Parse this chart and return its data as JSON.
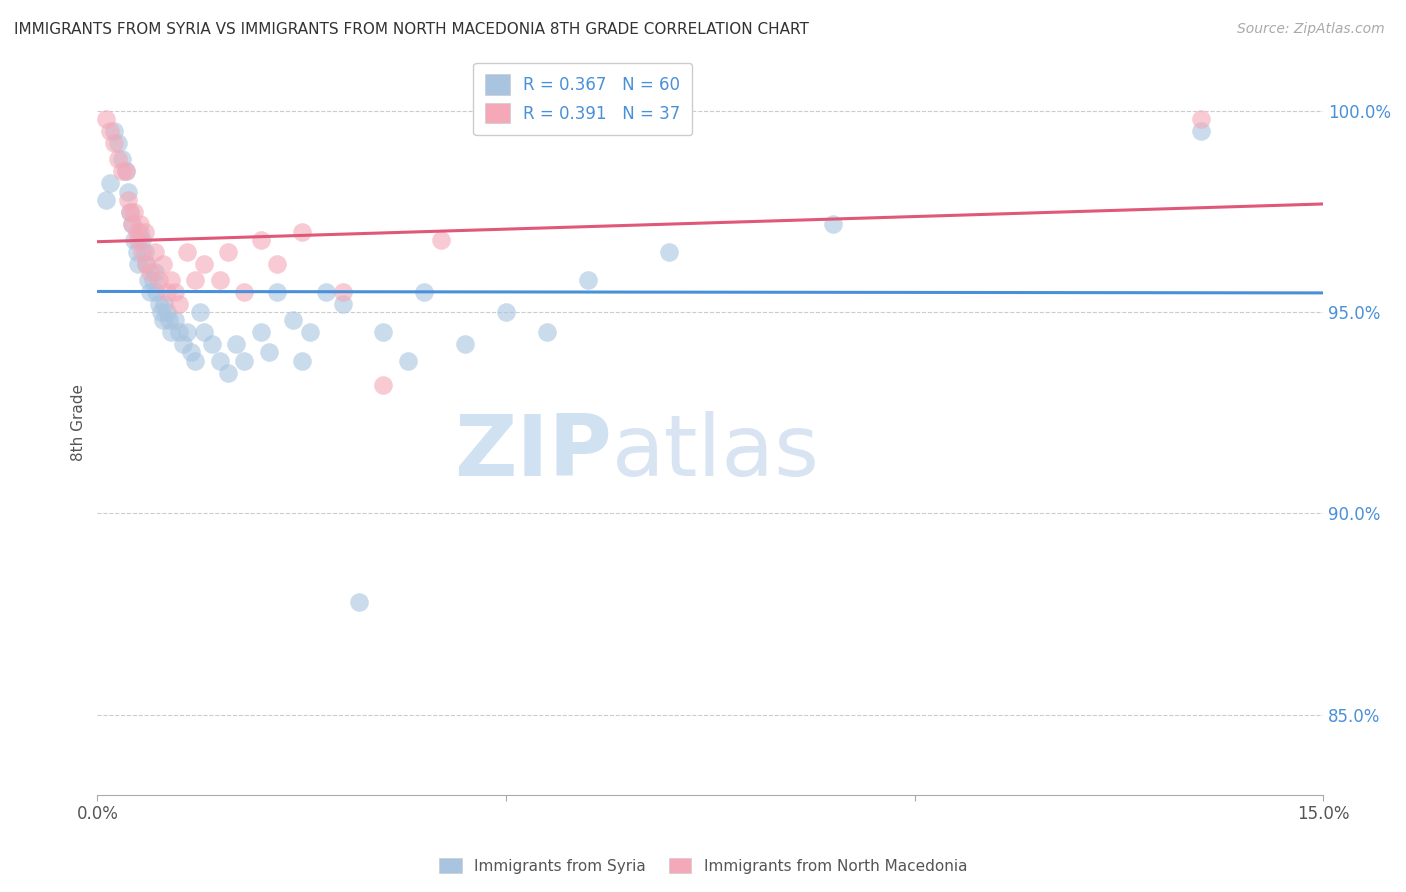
{
  "title": "IMMIGRANTS FROM SYRIA VS IMMIGRANTS FROM NORTH MACEDONIA 8TH GRADE CORRELATION CHART",
  "source": "Source: ZipAtlas.com",
  "xlabel_blue": "Immigrants from Syria",
  "xlabel_pink": "Immigrants from North Macedonia",
  "ylabel": "8th Grade",
  "xlim": [
    0.0,
    15.0
  ],
  "ylim": [
    83.0,
    101.5
  ],
  "yticks": [
    85.0,
    90.0,
    95.0,
    100.0
  ],
  "ytick_labels": [
    "85.0%",
    "90.0%",
    "95.0%",
    "100.0%"
  ],
  "xticks": [
    0.0,
    5.0,
    10.0,
    15.0
  ],
  "xtick_labels": [
    "0.0%",
    "",
    "",
    "15.0%"
  ],
  "blue_R": 0.367,
  "blue_N": 60,
  "pink_R": 0.391,
  "pink_N": 37,
  "blue_color": "#a8c4e0",
  "pink_color": "#f4a8b8",
  "blue_line_color": "#4a90d9",
  "pink_line_color": "#e05878",
  "blue_scatter": [
    [
      0.1,
      97.8
    ],
    [
      0.15,
      98.2
    ],
    [
      0.2,
      99.5
    ],
    [
      0.25,
      99.2
    ],
    [
      0.3,
      98.8
    ],
    [
      0.35,
      98.5
    ],
    [
      0.38,
      98.0
    ],
    [
      0.4,
      97.5
    ],
    [
      0.42,
      97.2
    ],
    [
      0.45,
      96.8
    ],
    [
      0.48,
      96.5
    ],
    [
      0.5,
      96.2
    ],
    [
      0.52,
      97.0
    ],
    [
      0.55,
      96.8
    ],
    [
      0.58,
      96.5
    ],
    [
      0.6,
      96.2
    ],
    [
      0.62,
      95.8
    ],
    [
      0.65,
      95.5
    ],
    [
      0.68,
      95.8
    ],
    [
      0.7,
      96.0
    ],
    [
      0.72,
      95.5
    ],
    [
      0.75,
      95.2
    ],
    [
      0.78,
      95.0
    ],
    [
      0.8,
      94.8
    ],
    [
      0.82,
      95.2
    ],
    [
      0.85,
      95.0
    ],
    [
      0.88,
      94.8
    ],
    [
      0.9,
      94.5
    ],
    [
      0.95,
      94.8
    ],
    [
      1.0,
      94.5
    ],
    [
      1.05,
      94.2
    ],
    [
      1.1,
      94.5
    ],
    [
      1.15,
      94.0
    ],
    [
      1.2,
      93.8
    ],
    [
      1.25,
      95.0
    ],
    [
      1.3,
      94.5
    ],
    [
      1.4,
      94.2
    ],
    [
      1.5,
      93.8
    ],
    [
      1.6,
      93.5
    ],
    [
      1.7,
      94.2
    ],
    [
      1.8,
      93.8
    ],
    [
      2.0,
      94.5
    ],
    [
      2.1,
      94.0
    ],
    [
      2.2,
      95.5
    ],
    [
      2.4,
      94.8
    ],
    [
      2.5,
      93.8
    ],
    [
      2.6,
      94.5
    ],
    [
      2.8,
      95.5
    ],
    [
      3.0,
      95.2
    ],
    [
      3.2,
      87.8
    ],
    [
      3.5,
      94.5
    ],
    [
      3.8,
      93.8
    ],
    [
      4.0,
      95.5
    ],
    [
      4.5,
      94.2
    ],
    [
      5.0,
      95.0
    ],
    [
      5.5,
      94.5
    ],
    [
      6.0,
      95.8
    ],
    [
      7.0,
      96.5
    ],
    [
      9.0,
      97.2
    ],
    [
      13.5,
      99.5
    ]
  ],
  "pink_scatter": [
    [
      0.1,
      99.8
    ],
    [
      0.15,
      99.5
    ],
    [
      0.2,
      99.2
    ],
    [
      0.25,
      98.8
    ],
    [
      0.3,
      98.5
    ],
    [
      0.35,
      98.5
    ],
    [
      0.38,
      97.8
    ],
    [
      0.4,
      97.5
    ],
    [
      0.42,
      97.2
    ],
    [
      0.45,
      97.5
    ],
    [
      0.48,
      97.0
    ],
    [
      0.5,
      96.8
    ],
    [
      0.52,
      97.2
    ],
    [
      0.55,
      96.5
    ],
    [
      0.58,
      97.0
    ],
    [
      0.6,
      96.2
    ],
    [
      0.65,
      96.0
    ],
    [
      0.7,
      96.5
    ],
    [
      0.75,
      95.8
    ],
    [
      0.8,
      96.2
    ],
    [
      0.85,
      95.5
    ],
    [
      0.9,
      95.8
    ],
    [
      0.95,
      95.5
    ],
    [
      1.0,
      95.2
    ],
    [
      1.1,
      96.5
    ],
    [
      1.2,
      95.8
    ],
    [
      1.3,
      96.2
    ],
    [
      1.5,
      95.8
    ],
    [
      1.6,
      96.5
    ],
    [
      1.8,
      95.5
    ],
    [
      2.0,
      96.8
    ],
    [
      2.2,
      96.2
    ],
    [
      2.5,
      97.0
    ],
    [
      3.0,
      95.5
    ],
    [
      3.5,
      93.2
    ],
    [
      4.2,
      96.8
    ],
    [
      13.5,
      99.8
    ]
  ],
  "watermark_zip": "ZIP",
  "watermark_atlas": "atlas",
  "background_color": "#ffffff",
  "grid_color": "#cccccc"
}
